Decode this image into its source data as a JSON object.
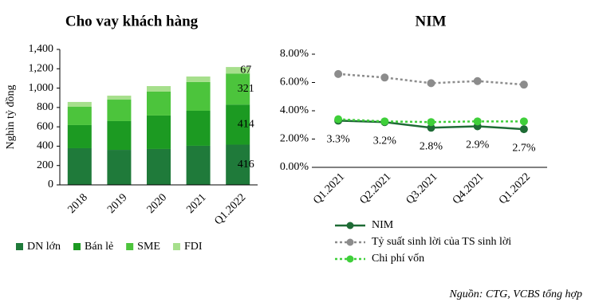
{
  "chart_data": [
    {
      "type": "stacked-bar",
      "title": "Cho vay khách hàng",
      "y_label": "Nghìn tỷ đồng",
      "categories": [
        "2018",
        "2019",
        "2020",
        "2021",
        "Q1.2022"
      ],
      "series": [
        {
          "name": "DN lớn",
          "color": "#1f7a3a",
          "values": [
            379,
            362,
            371,
            404,
            416
          ]
        },
        {
          "name": "Bán lẻ",
          "color": "#1c9a22",
          "values": [
            239,
            297,
            346,
            362,
            414
          ]
        },
        {
          "name": "SME",
          "color": "#4cc43c",
          "values": [
            189,
            222,
            247,
            297,
            321
          ]
        },
        {
          "name": "FDI",
          "color": "#a6df8c",
          "values": [
            50,
            41,
            57,
            57,
            67
          ]
        }
      ],
      "ylim": [
        0,
        1400
      ],
      "yticks": [
        0,
        200,
        400,
        600,
        800,
        {
          "value": 1000,
          "label": "1,000"
        },
        {
          "value": 1200,
          "label": "1,200"
        },
        {
          "value": 1400,
          "label": "1,400"
        }
      ],
      "legend": "bottom"
    },
    {
      "type": "line",
      "title": "NIM",
      "categories": [
        "Q1.2021",
        "Q2.2021",
        "Q3.2021",
        "Q4.2021",
        "Q1.2022"
      ],
      "series": [
        {
          "name": "NIM",
          "color": "#1e6b35",
          "style": "solid",
          "values": [
            3.3,
            3.2,
            2.8,
            2.9,
            2.7
          ],
          "value_labels": [
            "3.3%",
            "3.2%",
            "2.8%",
            "2.9%",
            "2.7%"
          ]
        },
        {
          "name": "Tỷ suất sinh lời của TS sinh lời",
          "color": "#8c8c8c",
          "style": "dotted",
          "values": [
            6.6,
            6.35,
            5.95,
            6.1,
            5.85
          ]
        },
        {
          "name": "Chi phí vốn",
          "color": "#3fcf3a",
          "style": "dotted",
          "values": [
            3.4,
            3.25,
            3.2,
            3.25,
            3.25
          ]
        }
      ],
      "ylim": [
        0,
        8
      ],
      "yticks": [
        {
          "value": 0,
          "label": "0.00%"
        },
        {
          "value": 2,
          "label": "2.00%"
        },
        {
          "value": 4,
          "label": "4.00%"
        },
        {
          "value": 6,
          "label": "6.00%"
        },
        {
          "value": 8,
          "label": "8.00%"
        }
      ],
      "legend": "bottom"
    }
  ],
  "source": "Nguồn: CTG, VCBS tổng hợp"
}
